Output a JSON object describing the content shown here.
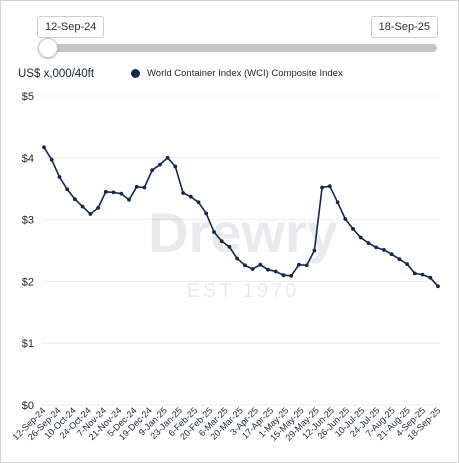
{
  "range": {
    "start": "12-Sep-24",
    "end": "18-Sep-25"
  },
  "unit_label": "US$ x,000/40ft",
  "watermark": {
    "name": "Drewry",
    "est": "EST 1970"
  },
  "colors": {
    "series": "#14284b",
    "grid": "#e9ecef",
    "track": "#c3c7cc"
  },
  "chart_data": {
    "type": "line",
    "title": "",
    "xlabel": "",
    "ylabel": "US$ x,000/40ft",
    "ylim": [
      0,
      5
    ],
    "y_ticks": [
      0,
      1,
      2,
      3,
      4,
      5
    ],
    "y_tick_labels": [
      "$0",
      "$1",
      "$2",
      "$3",
      "$4",
      "$5"
    ],
    "x_tick_labels": [
      "12-Sep-24",
      "26-Sep-24",
      "10-Oct-24",
      "24-Oct-24",
      "7-Nov-24",
      "21-Nov-24",
      "5-Dec-24",
      "19-Dec-24",
      "9-Jan-25",
      "23-Jan-25",
      "6-Feb-25",
      "20-Feb-25",
      "6-Mar-25",
      "20-Mar-25",
      "3-Apr-25",
      "17-Apr-25",
      "1-May-25",
      "15-May-25",
      "29-May-25",
      "12-Jun-25",
      "26-Jun-25",
      "10-Jul-25",
      "24-Jul-25",
      "7-Aug-25",
      "21-Aug-25",
      "4-Sep-25",
      "18-Sep-25"
    ],
    "grid": true,
    "legend_position": "top",
    "series": [
      {
        "name": "World Container Index (WCI) Composite Index",
        "values": [
          4.17,
          3.97,
          3.69,
          3.49,
          3.33,
          3.21,
          3.09,
          3.19,
          3.45,
          3.44,
          3.42,
          3.32,
          3.53,
          3.52,
          3.8,
          3.89,
          4.0,
          3.86,
          3.43,
          3.37,
          3.28,
          3.1,
          2.8,
          2.65,
          2.56,
          2.37,
          2.26,
          2.2,
          2.27,
          2.19,
          2.16,
          2.1,
          2.09,
          2.27,
          2.26,
          2.5,
          3.52,
          3.54,
          3.28,
          3.01,
          2.85,
          2.71,
          2.62,
          2.55,
          2.51,
          2.44,
          2.36,
          2.28,
          2.13,
          2.11,
          2.06,
          1.92
        ]
      }
    ]
  }
}
